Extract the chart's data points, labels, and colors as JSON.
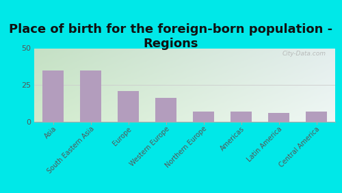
{
  "title": "Place of birth for the foreign-born population -\nRegions",
  "categories": [
    "Asia",
    "South Eastern Asia",
    "Europe",
    "Western Europe",
    "Northern Europe",
    "Americas",
    "Latin America",
    "Central America"
  ],
  "values": [
    35,
    35,
    21,
    16,
    7,
    7,
    6,
    7
  ],
  "bar_color": "#b39dbd",
  "background_outer": "#00e8e8",
  "ylim": [
    0,
    50
  ],
  "yticks": [
    0,
    25,
    50
  ],
  "title_fontsize": 13,
  "watermark": "City-Data.com",
  "bg_left_color": "#d4eac8",
  "bg_right_color": "#f0f4f0",
  "bg_top_color": "#f5f8f2"
}
